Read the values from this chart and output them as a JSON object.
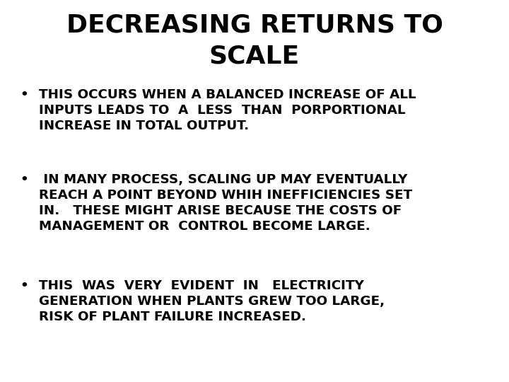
{
  "title_line1": "DECREASING RETURNS TO",
  "title_line2": "SCALE",
  "background_color": "#ffffff",
  "text_color": "#000000",
  "title_fontsize": 26,
  "body_fontsize": 13.2,
  "font_family": "DejaVu Sans",
  "font_weight": "bold",
  "bullet_char": "•",
  "bullet_points": [
    [
      "THIS OCCURS WHEN A BALANCED INCREASE OF ALL",
      "INPUTS LEADS TO  A  LESS  THAN  PORPORTIONAL",
      "INCREASE IN TOTAL OUTPUT."
    ],
    [
      " IN MANY PROCESS, SCALING UP MAY EVENTUALLY",
      "REACH A POINT BEYOND WHIH INEFFICIENCIES SET",
      "IN.   THESE MIGHT ARISE BECAUSE THE COSTS OF",
      "MANAGEMENT OR  CONTROL BECOME LARGE."
    ],
    [
      "THIS  WAS  VERY  EVIDENT  IN   ELECTRICITY",
      "GENERATION WHEN PLANTS GREW TOO LARGE,",
      "RISK OF PLANT FAILURE INCREASED."
    ]
  ]
}
